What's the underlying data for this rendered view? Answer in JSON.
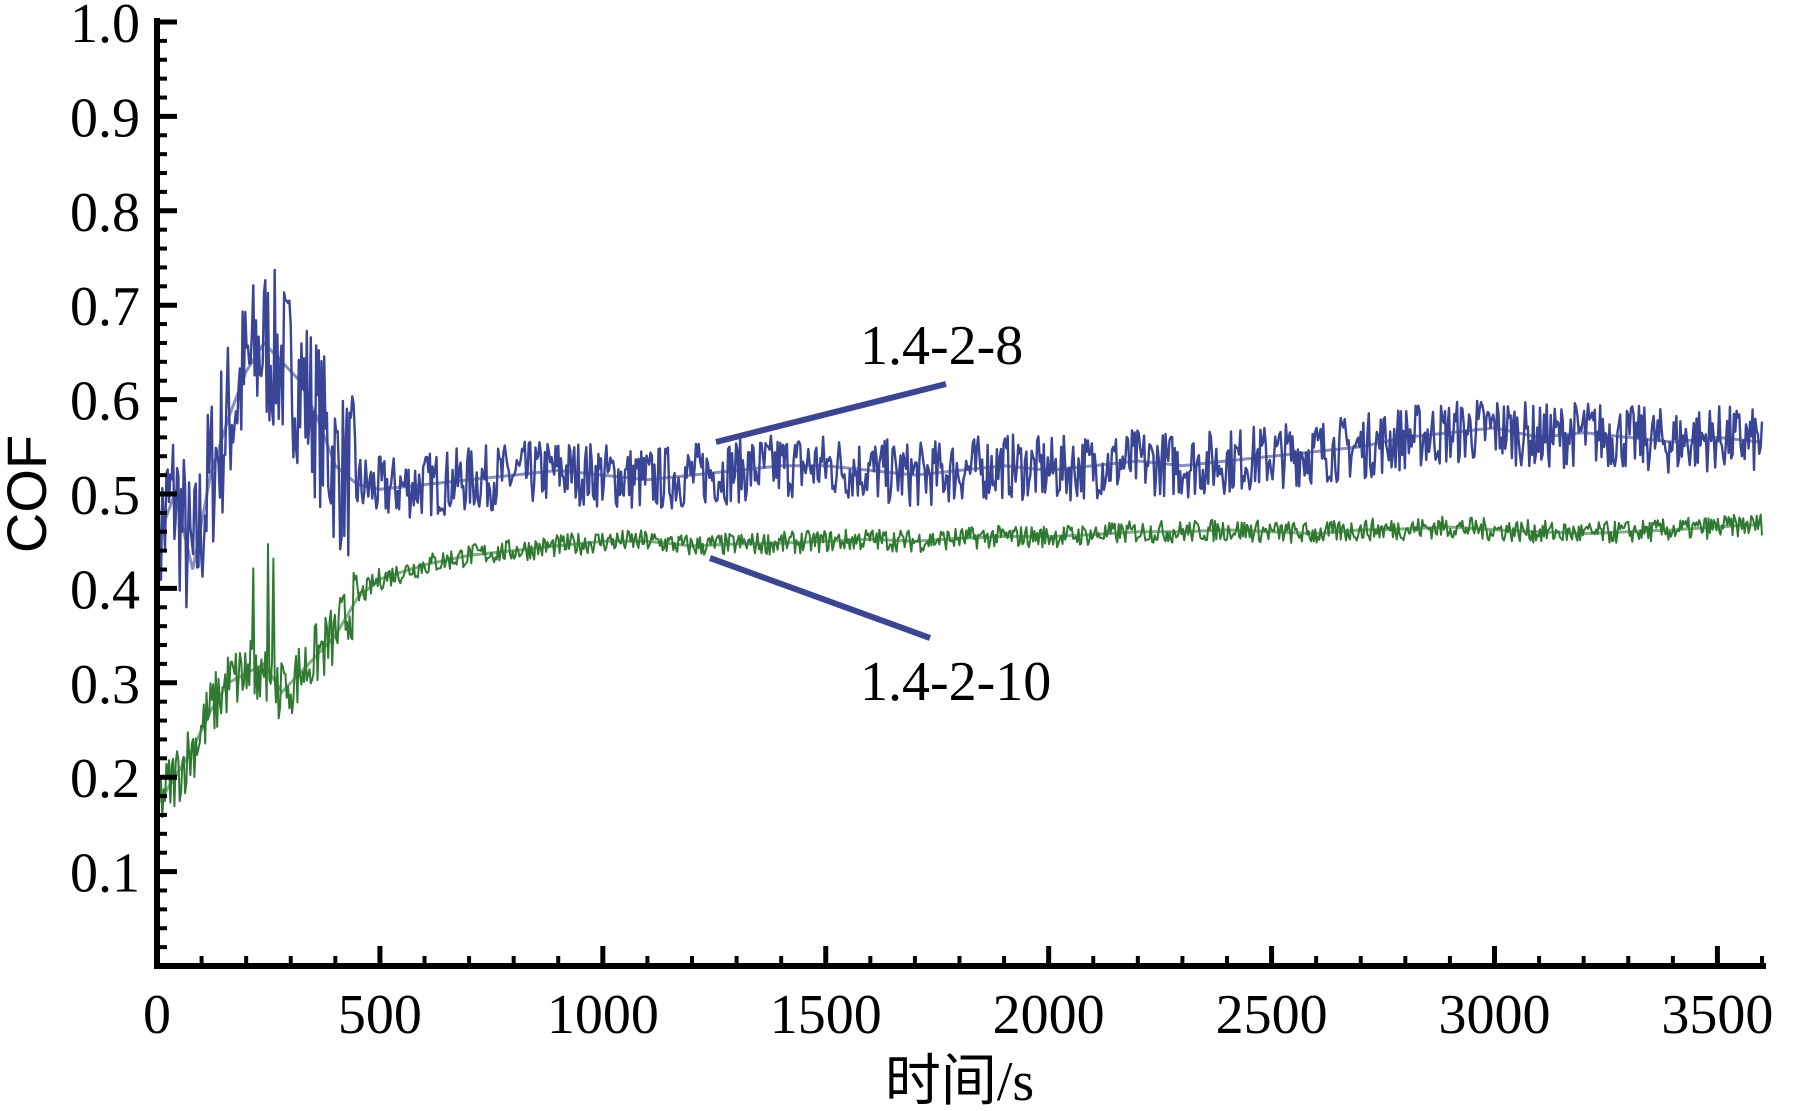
{
  "chart_data": {
    "type": "line",
    "xlabel": "时间/s",
    "ylabel": "COF",
    "xlim": [
      0,
      3600
    ],
    "ylim": [
      0,
      1.0
    ],
    "x_ticks": [
      "0",
      "500",
      "1000",
      "1500",
      "2000",
      "2500",
      "3000",
      "3500"
    ],
    "x_tick_values": [
      0,
      500,
      1000,
      1500,
      2000,
      2500,
      3000,
      3500
    ],
    "y_ticks": [
      "0.1",
      "0.2",
      "0.3",
      "0.4",
      "0.5",
      "0.6",
      "0.7",
      "0.8",
      "0.9",
      "1.0"
    ],
    "y_tick_values": [
      0.1,
      0.2,
      0.3,
      0.4,
      0.5,
      0.6,
      0.7,
      0.8,
      0.9,
      1.0
    ],
    "grid": false,
    "series": [
      {
        "name": "1.4-2-8",
        "color": "#3b4596",
        "x": [
          0,
          40,
          80,
          120,
          160,
          200,
          240,
          280,
          320,
          360,
          400,
          450,
          500,
          600,
          700,
          800,
          900,
          1000,
          1100,
          1200,
          1300,
          1400,
          1500,
          1600,
          1700,
          1800,
          1900,
          2000,
          2100,
          2200,
          2300,
          2400,
          2500,
          2600,
          2700,
          2800,
          2900,
          3000,
          3100,
          3200,
          3300,
          3400,
          3500,
          3600
        ],
        "y": [
          0.45,
          0.5,
          0.42,
          0.52,
          0.58,
          0.63,
          0.66,
          0.64,
          0.62,
          0.58,
          0.53,
          0.51,
          0.505,
          0.51,
          0.515,
          0.52,
          0.525,
          0.52,
          0.515,
          0.52,
          0.525,
          0.53,
          0.53,
          0.525,
          0.52,
          0.525,
          0.53,
          0.525,
          0.53,
          0.535,
          0.53,
          0.535,
          0.54,
          0.545,
          0.55,
          0.56,
          0.565,
          0.57,
          0.56,
          0.565,
          0.56,
          0.555,
          0.56,
          0.555
        ],
        "label_annotation": "1.4-2-8"
      },
      {
        "name": "1.4-2-10",
        "color": "#2e7a31",
        "x": [
          0,
          40,
          80,
          120,
          160,
          200,
          240,
          280,
          320,
          360,
          400,
          450,
          500,
          600,
          700,
          800,
          900,
          1000,
          1100,
          1200,
          1300,
          1400,
          1500,
          1600,
          1700,
          1800,
          1900,
          2000,
          2100,
          2200,
          2300,
          2400,
          2500,
          2600,
          2700,
          2800,
          2900,
          3000,
          3100,
          3200,
          3300,
          3400,
          3500,
          3600
        ],
        "y": [
          0.17,
          0.2,
          0.23,
          0.27,
          0.3,
          0.31,
          0.32,
          0.29,
          0.31,
          0.33,
          0.35,
          0.39,
          0.41,
          0.425,
          0.435,
          0.44,
          0.445,
          0.45,
          0.45,
          0.445,
          0.447,
          0.448,
          0.45,
          0.452,
          0.45,
          0.453,
          0.455,
          0.455,
          0.457,
          0.46,
          0.46,
          0.462,
          0.46,
          0.458,
          0.462,
          0.463,
          0.465,
          0.462,
          0.46,
          0.458,
          0.46,
          0.462,
          0.465,
          0.468
        ],
        "label_annotation": "1.4-2-10"
      }
    ]
  }
}
